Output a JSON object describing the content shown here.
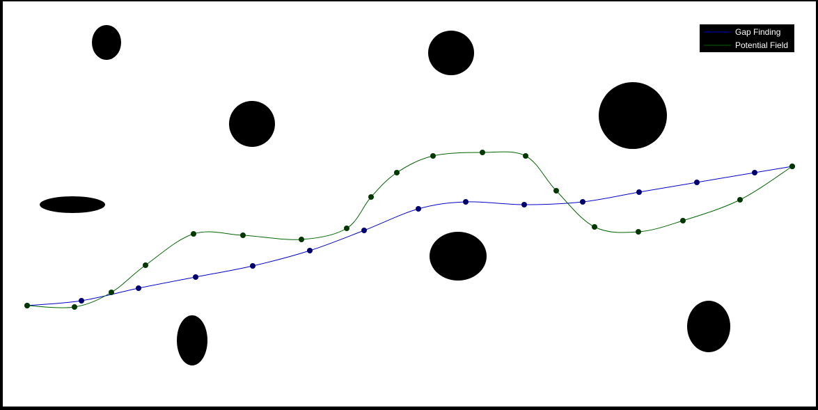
{
  "legend": {
    "items": [
      {
        "label": "Gap Finding",
        "color": "#0000cc"
      },
      {
        "label": "Potential Field",
        "color": "#006400"
      }
    ]
  },
  "colors": {
    "obstacle": "#000000",
    "gap_marker": "#00006e",
    "field_marker": "#003800"
  }
}
